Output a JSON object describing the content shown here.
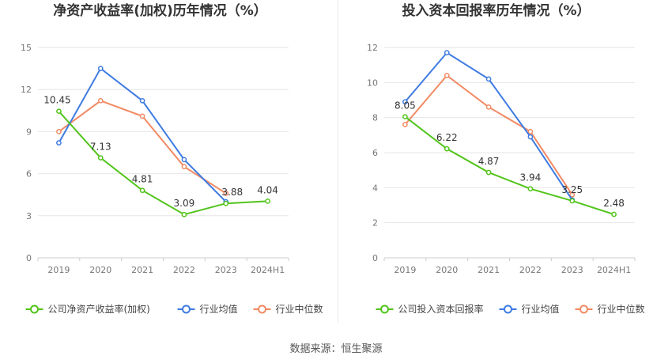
{
  "source_label": "数据来源：恒生聚源",
  "colors": {
    "company": "#52c41a",
    "avg": "#3f7be2",
    "median": "#f28a63",
    "grid": "#e6e6e6",
    "tick": "#777777"
  },
  "chart_data": [
    {
      "type": "line",
      "title": "净资产收益率(加权)历年情况（%）",
      "categories": [
        "2019",
        "2020",
        "2021",
        "2022",
        "2023",
        "2024H1"
      ],
      "ylim": [
        0,
        15
      ],
      "yticks": [
        0,
        3,
        6,
        9,
        12,
        15
      ],
      "grid": true,
      "legend_position": "bottom",
      "series": [
        {
          "name": "公司净资产收益率(加权)",
          "key": "company",
          "values": [
            10.45,
            7.13,
            4.81,
            3.09,
            3.88,
            4.04
          ],
          "labels": [
            "10.45",
            "7.13",
            "4.81",
            "3.09",
            "3.88",
            "4.04"
          ]
        },
        {
          "name": "行业均值",
          "key": "avg",
          "values": [
            8.2,
            13.5,
            11.2,
            7.0,
            4.0,
            null
          ]
        },
        {
          "name": "行业中位数",
          "key": "median",
          "values": [
            9.0,
            11.2,
            10.1,
            6.5,
            4.6,
            null
          ]
        }
      ]
    },
    {
      "type": "line",
      "title": "投入资本回报率历年情况（%）",
      "categories": [
        "2019",
        "2020",
        "2021",
        "2022",
        "2023",
        "2024H1"
      ],
      "ylim": [
        0,
        12
      ],
      "yticks": [
        0,
        2,
        4,
        6,
        8,
        10,
        12
      ],
      "grid": true,
      "legend_position": "bottom",
      "series": [
        {
          "name": "公司投入资本回报率",
          "key": "company",
          "values": [
            8.05,
            6.22,
            4.87,
            3.94,
            3.25,
            2.48
          ],
          "labels": [
            "8.05",
            "6.22",
            "4.87",
            "3.94",
            "3.25",
            "2.48"
          ]
        },
        {
          "name": "行业均值",
          "key": "avg",
          "values": [
            8.9,
            11.7,
            10.2,
            6.9,
            3.3,
            null
          ]
        },
        {
          "name": "行业中位数",
          "key": "median",
          "values": [
            7.6,
            10.4,
            8.6,
            7.2,
            3.6,
            null
          ]
        }
      ]
    }
  ]
}
